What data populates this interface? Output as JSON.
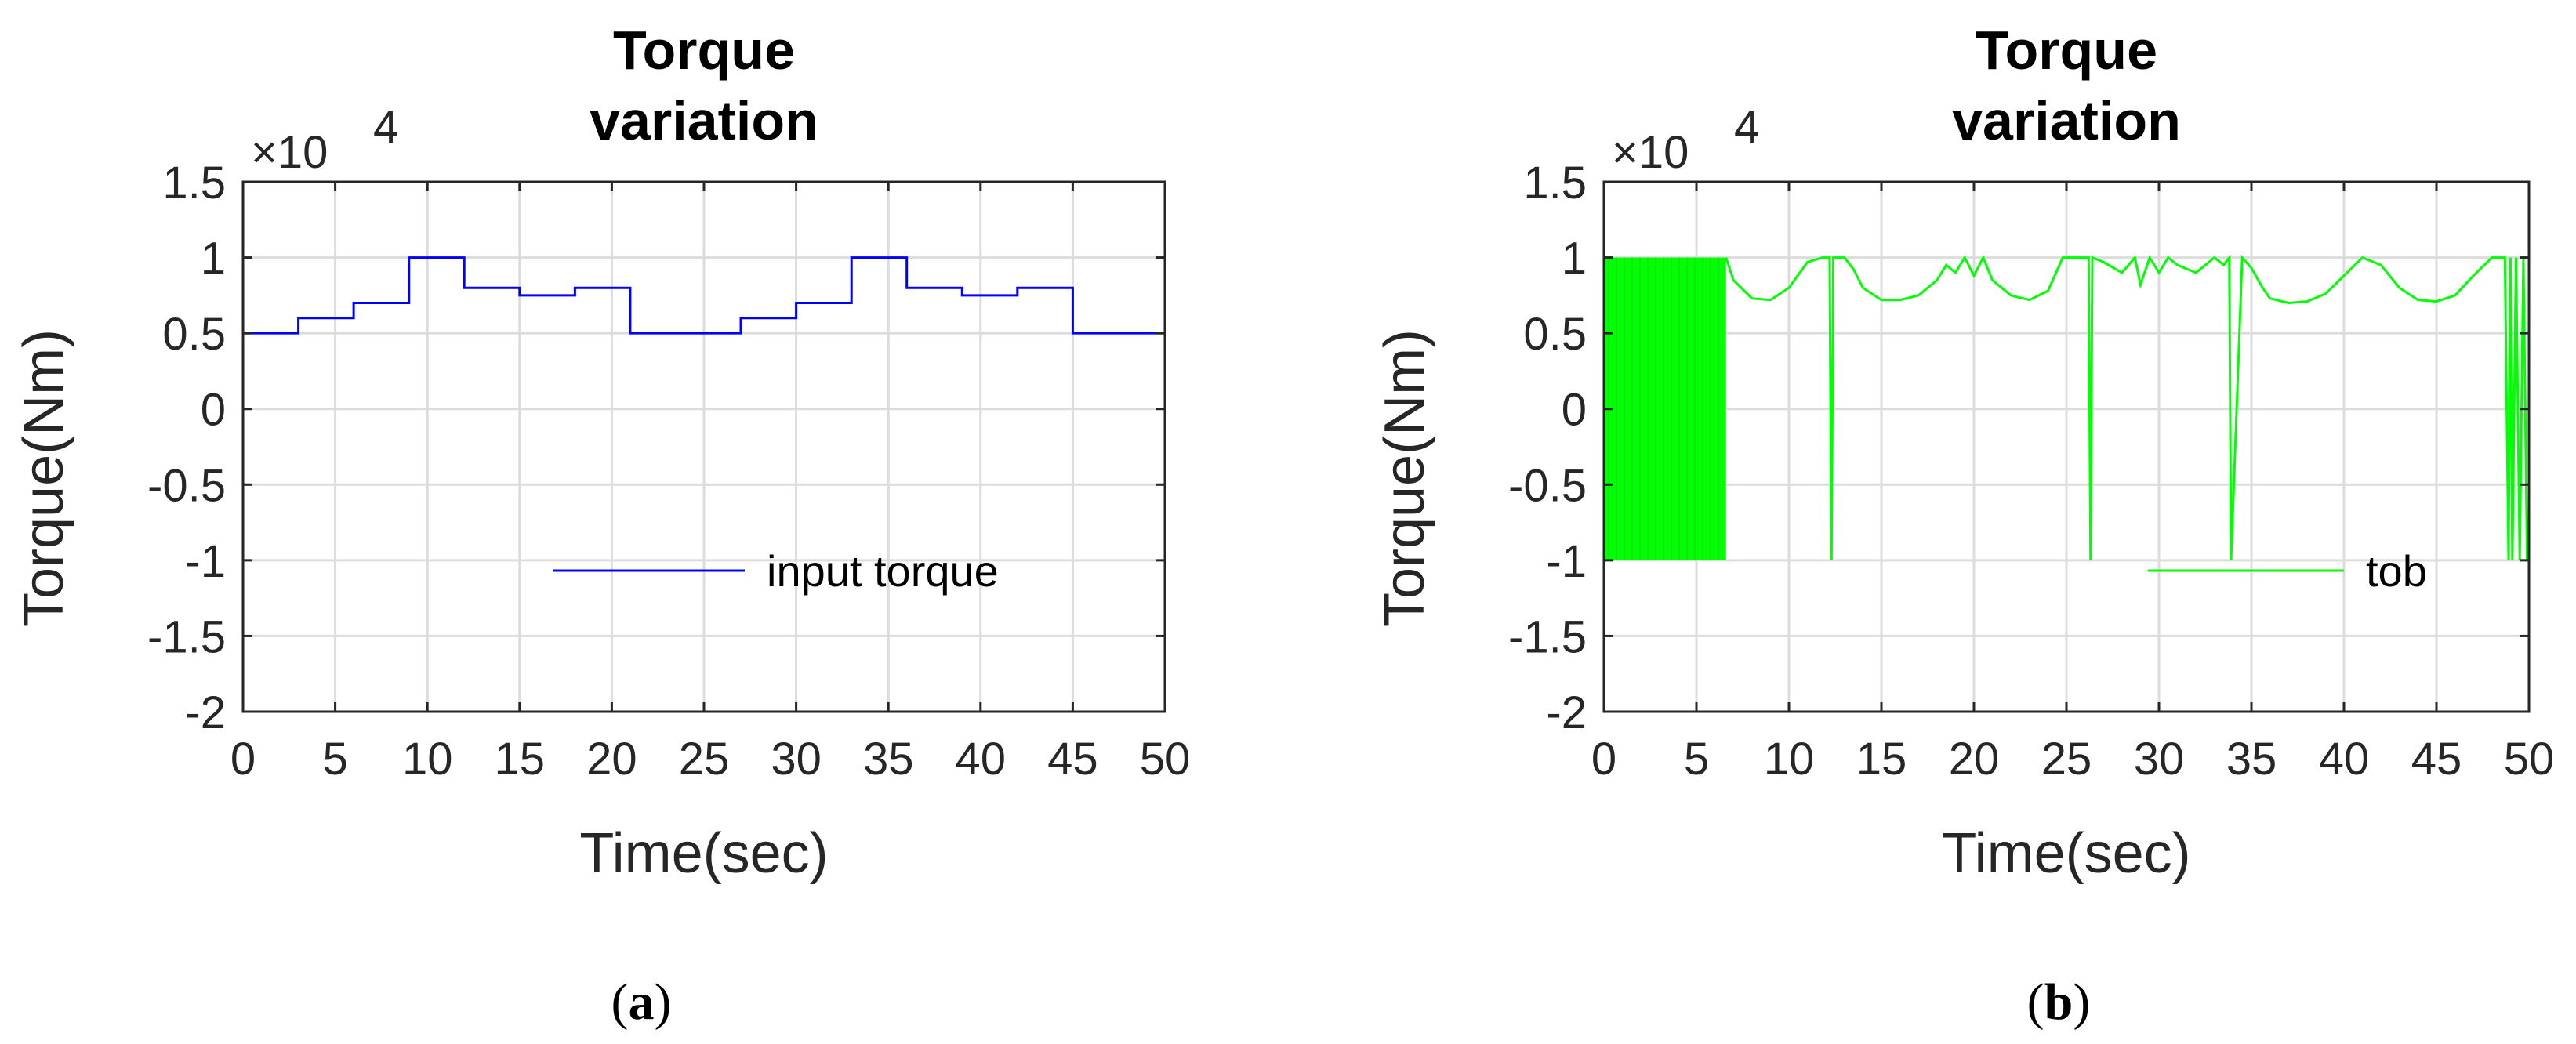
{
  "chart_data": [
    {
      "type": "line",
      "panel_label": "a",
      "title": "Torque variation",
      "title_lines": [
        "Torque",
        "variation"
      ],
      "xlabel": "Time(sec)",
      "ylabel": "Torque(Nm)",
      "y_multiplier": "×10",
      "y_multiplier_exponent": "4",
      "xlim": [
        0,
        50
      ],
      "ylim": [
        -2,
        1.5
      ],
      "x_ticks": [
        "0",
        "5",
        "10",
        "15",
        "20",
        "25",
        "30",
        "35",
        "40",
        "45",
        "50"
      ],
      "y_ticks": [
        "1.5",
        "1",
        "0.5",
        "0",
        "-0.5",
        "-1",
        "-1.5",
        "-2"
      ],
      "grid": true,
      "legend_position": "lower-right",
      "color": "#0000ff",
      "series": [
        {
          "name": "input torque",
          "x": [
            0,
            3,
            3,
            6,
            6,
            9,
            9,
            12,
            12,
            15,
            15,
            18,
            18,
            21,
            21,
            27,
            27,
            30,
            30,
            33,
            33,
            36,
            36,
            39,
            39,
            42,
            42,
            45,
            45,
            50
          ],
          "y": [
            0.5,
            0.5,
            0.6,
            0.6,
            0.7,
            0.7,
            1.0,
            1.0,
            0.8,
            0.8,
            0.75,
            0.75,
            0.8,
            0.8,
            0.5,
            0.5,
            0.6,
            0.6,
            0.7,
            0.7,
            1.0,
            1.0,
            0.8,
            0.8,
            0.75,
            0.75,
            0.8,
            0.8,
            0.5,
            0.5
          ]
        }
      ]
    },
    {
      "type": "line",
      "panel_label": "b",
      "title": "Torque variation",
      "title_lines": [
        "Torque",
        "variation"
      ],
      "xlabel": "Time(sec)",
      "ylabel": "Torque(Nm)",
      "y_multiplier": "×10",
      "y_multiplier_exponent": "4",
      "xlim": [
        0,
        50
      ],
      "ylim": [
        -2,
        1.5
      ],
      "x_ticks": [
        "0",
        "5",
        "10",
        "15",
        "20",
        "25",
        "30",
        "35",
        "40",
        "45",
        "50"
      ],
      "y_ticks": [
        "1.5",
        "1",
        "0.5",
        "0",
        "-0.5",
        "-1",
        "-1.5",
        "-2"
      ],
      "grid": true,
      "legend_position": "lower-right",
      "color": "#00ff00",
      "series": [
        {
          "name": "tob",
          "x": [
            6.6,
            7,
            8,
            9,
            10,
            11,
            11.8,
            12.2,
            12.3,
            12.4,
            13,
            13.5,
            14,
            15,
            16,
            17,
            18,
            18.5,
            19,
            19.5,
            20,
            20.5,
            21,
            22,
            23,
            24,
            24.8,
            25.5,
            26.2,
            26.3,
            26.4,
            27,
            28,
            28.7,
            29,
            29.5,
            30,
            30.5,
            31,
            32,
            33,
            33.5,
            33.8,
            33.9,
            34.5,
            35,
            35.6,
            36,
            37,
            38,
            39,
            40,
            41,
            42,
            43,
            44,
            45,
            46,
            47,
            48,
            48.7,
            48.9,
            49,
            49.1,
            49.3,
            49.5,
            49.7,
            49.9,
            50
          ],
          "y": [
            1.0,
            0.85,
            0.73,
            0.72,
            0.8,
            0.97,
            1.0,
            1.0,
            -1.0,
            1.0,
            1.0,
            0.92,
            0.8,
            0.72,
            0.72,
            0.75,
            0.85,
            0.95,
            0.9,
            1.0,
            0.88,
            1.0,
            0.85,
            0.75,
            0.72,
            0.78,
            1.0,
            1.0,
            1.0,
            -1.0,
            1.0,
            0.97,
            0.9,
            1.0,
            0.82,
            1.0,
            0.9,
            1.0,
            0.95,
            0.9,
            1.0,
            0.95,
            1.0,
            -1.0,
            1.0,
            0.93,
            0.8,
            0.73,
            0.7,
            0.71,
            0.76,
            0.88,
            1.0,
            0.95,
            0.8,
            0.72,
            0.71,
            0.75,
            0.88,
            1.0,
            1.0,
            -1.0,
            1.0,
            -1.0,
            1.0,
            -1.0,
            1.0,
            -1.0,
            -1.0
          ]
        }
      ],
      "oscillation_band": {
        "x_range": [
          0,
          6.6
        ],
        "y_range": [
          -1.0,
          1.0
        ]
      }
    }
  ]
}
